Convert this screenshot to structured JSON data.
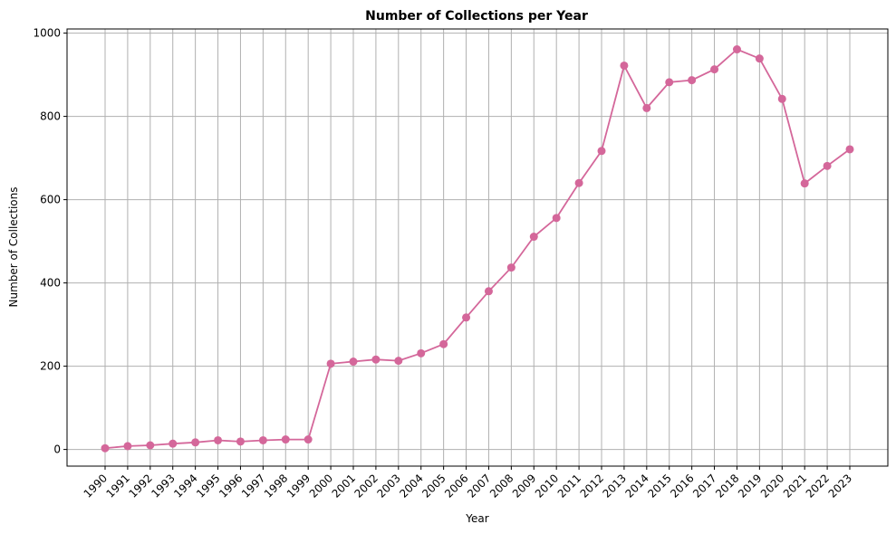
{
  "chart_data": {
    "type": "line",
    "title": "Number of Collections per Year",
    "xlabel": "Year",
    "ylabel": "Number of Collections",
    "x": [
      "1990",
      "1991",
      "1992",
      "1993",
      "1994",
      "1995",
      "1996",
      "1997",
      "1998",
      "1999",
      "2000",
      "2001",
      "2002",
      "2003",
      "2004",
      "2005",
      "2006",
      "2007",
      "2008",
      "2009",
      "2010",
      "2011",
      "2012",
      "2013",
      "2014",
      "2015",
      "2016",
      "2017",
      "2018",
      "2019",
      "2020",
      "2021",
      "2022",
      "2023"
    ],
    "values": [
      3,
      8,
      10,
      14,
      17,
      22,
      19,
      22,
      24,
      24,
      206,
      211,
      216,
      213,
      231,
      253,
      317,
      380,
      437,
      511,
      556,
      640,
      717,
      922,
      820,
      882,
      887,
      913,
      961,
      939,
      842,
      639,
      681,
      721
    ],
    "ylim": [
      -40,
      1010
    ],
    "yticks": [
      0,
      200,
      400,
      600,
      800,
      1000
    ],
    "grid": true,
    "color": "#d4679a",
    "marker": "circle"
  }
}
